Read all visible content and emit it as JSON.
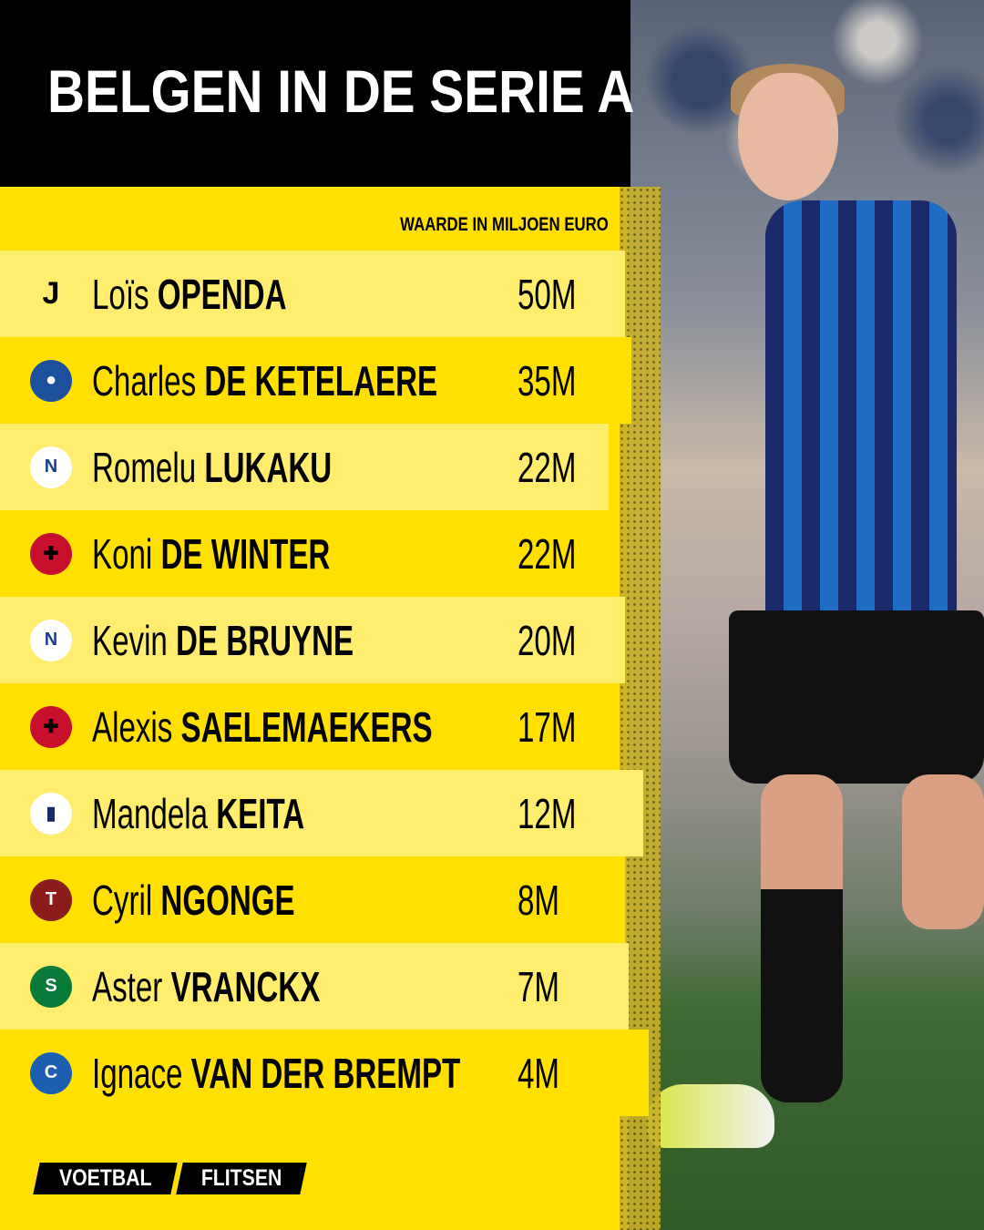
{
  "title": "BELGEN IN DE SERIE A",
  "subtitle": "WAARDE IN MILJOEN EURO",
  "brand": {
    "part1": "VOETBAL",
    "part2": "FLITSEN"
  },
  "colors": {
    "yellow": "#FFE000",
    "light_yellow": "#FFEE6E",
    "black": "#000000"
  },
  "players": [
    {
      "first": "Loïs",
      "last": "OPENDA",
      "value": "50M",
      "club_icon": "juventus-crest"
    },
    {
      "first": "Charles",
      "last": "DE KETELAERE",
      "value": "35M",
      "club_icon": "atalanta-crest"
    },
    {
      "first": "Romelu",
      "last": "LUKAKU",
      "value": "22M",
      "club_icon": "napoli-crest"
    },
    {
      "first": "Koni",
      "last": "DE WINTER",
      "value": "22M",
      "club_icon": "ac-milan-crest"
    },
    {
      "first": "Kevin",
      "last": "DE BRUYNE",
      "value": "20M",
      "club_icon": "napoli-crest"
    },
    {
      "first": "Alexis",
      "last": "SAELEMAEKERS",
      "value": "17M",
      "club_icon": "ac-milan-crest"
    },
    {
      "first": "Mandela",
      "last": "KEITA",
      "value": "12M",
      "club_icon": "parma-crest"
    },
    {
      "first": "Cyril",
      "last": "NGONGE",
      "value": "8M",
      "club_icon": "torino-crest"
    },
    {
      "first": "Aster",
      "last": "VRANCKX",
      "value": "7M",
      "club_icon": "sassuolo-crest"
    },
    {
      "first": "Ignace",
      "last": "VAN DER BREMPT",
      "value": "4M",
      "club_icon": "como-crest"
    }
  ]
}
